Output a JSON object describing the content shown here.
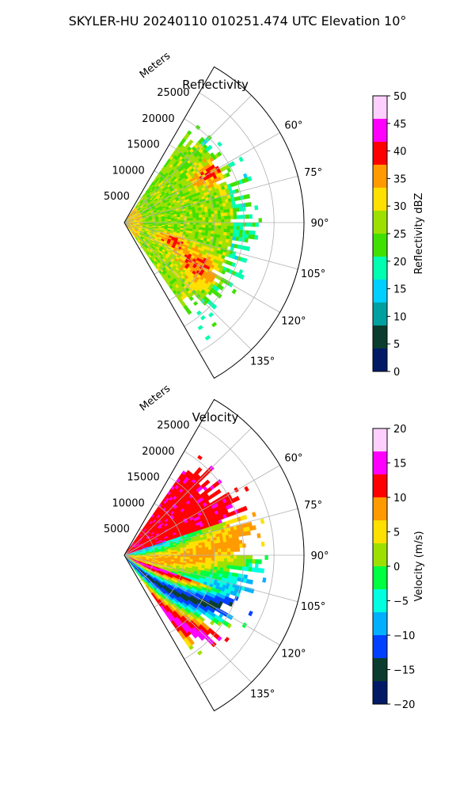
{
  "figure": {
    "title": "SKYLER-HU  20240110  010251.474 UTC Elevation 10°"
  },
  "chart_data": [
    {
      "type": "polar-sector",
      "title": "Reflectivity",
      "radial_label": "Meters",
      "radial_ticks": [
        "5000",
        "10000",
        "15000",
        "20000",
        "25000"
      ],
      "angle_ticks": [
        "60°",
        "75°",
        "90°",
        "105°",
        "120°",
        "135°"
      ],
      "angle_range_deg": [
        30,
        150
      ],
      "range_max_m": 30000,
      "field": "reflectivity",
      "colorbar": {
        "label": "Reflectivity dBZ",
        "min": 0,
        "max": 50,
        "ticks": [
          "0",
          "5",
          "10",
          "15",
          "20",
          "25",
          "30",
          "35",
          "40",
          "45",
          "50"
        ],
        "colors": [
          "#001a66",
          "#0a3d2e",
          "#00a0a0",
          "#00d0ff",
          "#00ffb0",
          "#40e000",
          "#9de000",
          "#ffe000",
          "#ff9a00",
          "#ff0000",
          "#ff00ff",
          "#ffd0ff"
        ]
      }
    },
    {
      "type": "polar-sector",
      "title": "Velocity",
      "radial_label": "Meters",
      "radial_ticks": [
        "5000",
        "10000",
        "15000",
        "20000",
        "25000"
      ],
      "angle_ticks": [
        "60°",
        "75°",
        "90°",
        "105°",
        "120°",
        "135°"
      ],
      "angle_range_deg": [
        30,
        150
      ],
      "range_max_m": 30000,
      "field": "velocity",
      "colorbar": {
        "label": "Velocity (m/s)",
        "min": -20,
        "max": 20,
        "ticks": [
          "−20",
          "−15",
          "−10",
          "−5",
          "0",
          "5",
          "10",
          "15",
          "20"
        ],
        "colors": [
          "#001a66",
          "#0a3d2e",
          "#0040ff",
          "#00b0ff",
          "#00ffe0",
          "#00ff40",
          "#9de000",
          "#ffe000",
          "#ff9a00",
          "#ff0000",
          "#ff00ff",
          "#ffd0ff"
        ]
      }
    }
  ]
}
